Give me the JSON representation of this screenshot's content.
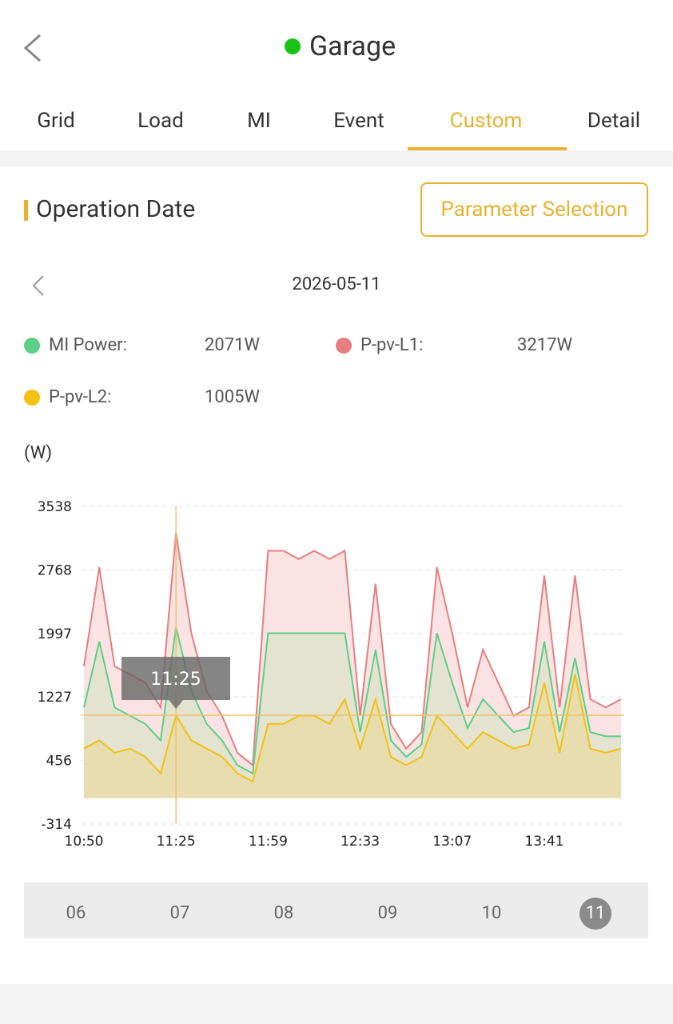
{
  "header": {
    "title": "Garage"
  },
  "tabs": [
    "Grid",
    "Load",
    "MI",
    "Event",
    "Custom",
    "Detail"
  ],
  "active_tab": 4,
  "section": {
    "title": "Operation Date",
    "button": "Parameter Selection"
  },
  "date": "2026-05-11",
  "chart_data": {
    "type": "area",
    "y_label": "(W)",
    "ylim": [
      -314,
      3538
    ],
    "yticks": [
      -314,
      456,
      1227,
      1997,
      2768,
      3538
    ],
    "grid": true,
    "tooltip": "11:25",
    "cursor_index": 6,
    "categories": [
      "10:50",
      null,
      null,
      null,
      null,
      null,
      "11:25",
      null,
      null,
      null,
      null,
      null,
      "11:59",
      null,
      null,
      null,
      null,
      null,
      "12:33",
      null,
      null,
      null,
      null,
      null,
      "13:07",
      null,
      null,
      null,
      null,
      null,
      "13:41",
      null,
      null,
      null,
      null,
      null
    ],
    "series": [
      {
        "name": "P-pv-L1:",
        "reading": "3217W",
        "color": "#e57f7f",
        "fill": "#fbdede",
        "values": [
          1600,
          2800,
          1600,
          1500,
          1400,
          1100,
          3217,
          2000,
          1300,
          1000,
          550,
          400,
          3000,
          3000,
          2900,
          3000,
          2900,
          3000,
          1000,
          2600,
          900,
          600,
          800,
          2800,
          2000,
          1100,
          1800,
          1400,
          1000,
          1100,
          2700,
          1100,
          2700,
          1200,
          1100,
          1200
        ]
      },
      {
        "name": "MI Power:",
        "reading": "2071W",
        "color": "#5ccf86",
        "fill": "#dfe3cc",
        "values": [
          1100,
          1900,
          1100,
          1000,
          900,
          700,
          2071,
          1300,
          900,
          700,
          400,
          300,
          2000,
          2000,
          2000,
          2000,
          2000,
          2000,
          800,
          1800,
          700,
          500,
          650,
          2000,
          1400,
          850,
          1200,
          1000,
          800,
          850,
          1900,
          800,
          1700,
          800,
          750,
          750
        ]
      },
      {
        "name": "P-pv-L2:",
        "reading": "1005W",
        "color": "#f3c214",
        "fill": "#e8dca8",
        "values": [
          600,
          700,
          550,
          600,
          500,
          300,
          1005,
          700,
          600,
          500,
          300,
          200,
          900,
          900,
          1000,
          1000,
          900,
          1200,
          600,
          1200,
          500,
          400,
          500,
          1000,
          800,
          600,
          800,
          700,
          600,
          650,
          1400,
          550,
          1500,
          600,
          550,
          600
        ]
      }
    ]
  },
  "days": [
    "06",
    "07",
    "08",
    "09",
    "10",
    "11"
  ],
  "active_day": 5
}
